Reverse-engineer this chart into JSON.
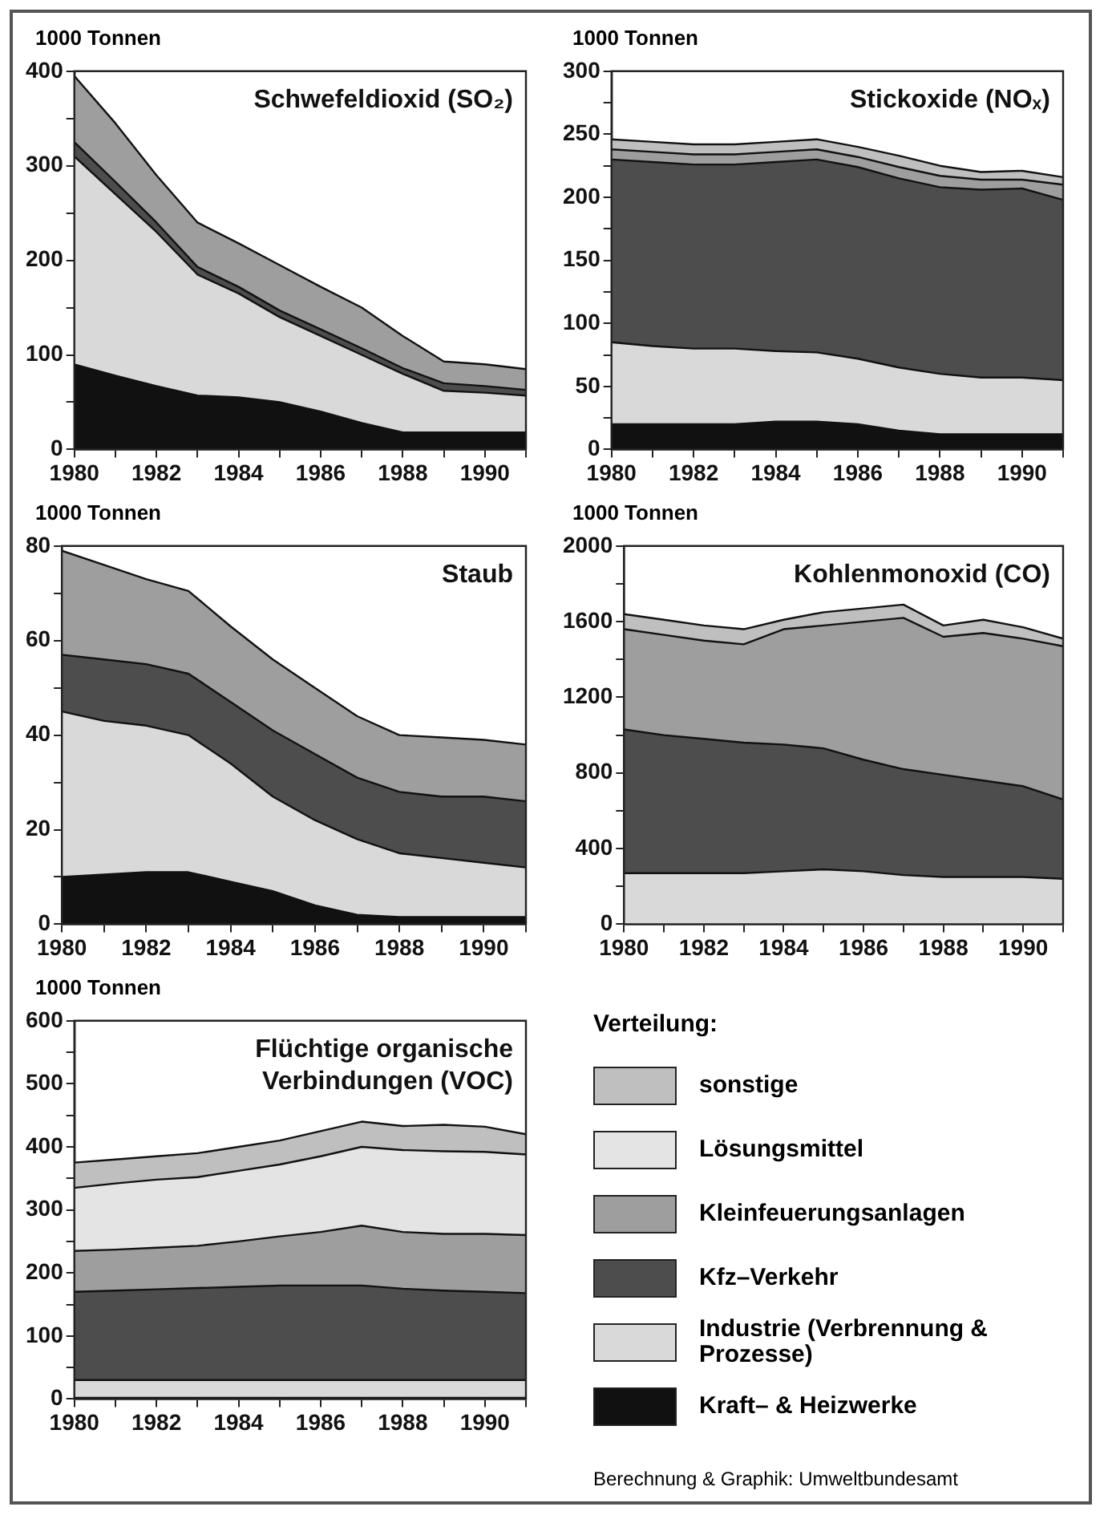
{
  "chart_data": [
    {
      "type": "area",
      "stacked": true,
      "title": "Schwefeldioxid (SO₂)",
      "ylabel": "1000 Tonnen",
      "x": [
        1980,
        1981,
        1982,
        1983,
        1984,
        1985,
        1986,
        1987,
        1988,
        1989,
        1990,
        1991
      ],
      "xlim": [
        1980,
        1991
      ],
      "xticks": [
        1980,
        {
          "value": 1981,
          "label": null
        },
        1982,
        {
          "value": 1983,
          "label": null
        },
        1984,
        {
          "value": 1985,
          "label": null
        },
        1986,
        {
          "value": 1987,
          "label": null
        },
        1988,
        {
          "value": 1989,
          "label": null
        },
        1990,
        {
          "value": 1991,
          "label": null
        }
      ],
      "ylim": [
        0,
        400
      ],
      "yticks": [
        0,
        {
          "value": 50,
          "label": null
        },
        100,
        {
          "value": 150,
          "label": null
        },
        200,
        {
          "value": 250,
          "label": null
        },
        300,
        {
          "value": 350,
          "label": null
        },
        400
      ],
      "series": [
        {
          "color": "#111111",
          "values": [
            90,
            78,
            67,
            57,
            55,
            50,
            40,
            28,
            18,
            18,
            18,
            18
          ]
        },
        {
          "color": "#d9d9d9",
          "values": [
            220,
            192,
            163,
            128,
            110,
            90,
            80,
            72,
            62,
            44,
            42,
            39
          ]
        },
        {
          "color": "#4d4d4d",
          "values": [
            15,
            13,
            10,
            8,
            7,
            7,
            7,
            7,
            6,
            8,
            7,
            6
          ]
        },
        {
          "color": "#9e9e9e",
          "values": [
            70,
            62,
            50,
            47,
            46,
            48,
            45,
            43,
            34,
            23,
            23,
            22
          ]
        }
      ]
    },
    {
      "type": "area",
      "stacked": true,
      "title": "Stickoxide (NOₓ)",
      "ylabel": "1000 Tonnen",
      "x": [
        1980,
        1981,
        1982,
        1983,
        1984,
        1985,
        1986,
        1987,
        1988,
        1989,
        1990,
        1991
      ],
      "xlim": [
        1980,
        1991
      ],
      "xticks": [
        1980,
        {
          "value": 1981,
          "label": null
        },
        1982,
        {
          "value": 1983,
          "label": null
        },
        1984,
        {
          "value": 1985,
          "label": null
        },
        1986,
        {
          "value": 1987,
          "label": null
        },
        1988,
        {
          "value": 1989,
          "label": null
        },
        1990,
        {
          "value": 1991,
          "label": null
        }
      ],
      "ylim": [
        0,
        300
      ],
      "yticks": [
        0,
        {
          "value": 25,
          "label": null
        },
        50,
        {
          "value": 75,
          "label": null
        },
        100,
        {
          "value": 125,
          "label": null
        },
        150,
        {
          "value": 175,
          "label": null
        },
        200,
        {
          "value": 225,
          "label": null
        },
        250,
        {
          "value": 275,
          "label": null
        },
        300
      ],
      "series": [
        {
          "color": "#111111",
          "values": [
            20,
            20,
            20,
            20,
            22,
            22,
            20,
            15,
            12,
            12,
            12,
            12
          ]
        },
        {
          "color": "#d9d9d9",
          "values": [
            65,
            62,
            60,
            60,
            56,
            55,
            52,
            50,
            48,
            45,
            45,
            43
          ]
        },
        {
          "color": "#4d4d4d",
          "values": [
            145,
            146,
            146,
            146,
            150,
            153,
            152,
            150,
            148,
            149,
            150,
            143
          ]
        },
        {
          "color": "#9e9e9e",
          "values": [
            8,
            8,
            8,
            8,
            8,
            8,
            8,
            9,
            9,
            8,
            7,
            12
          ]
        },
        {
          "color": "#bfbfbf",
          "values": [
            8,
            8,
            8,
            8,
            8,
            8,
            8,
            9,
            8,
            6,
            7,
            6
          ]
        }
      ]
    },
    {
      "type": "area",
      "stacked": true,
      "title": "Staub",
      "ylabel": "1000 Tonnen",
      "x": [
        1980,
        1981,
        1982,
        1983,
        1984,
        1985,
        1986,
        1987,
        1988,
        1989,
        1990,
        1991
      ],
      "xlim": [
        1980,
        1991
      ],
      "xticks": [
        1980,
        {
          "value": 1981,
          "label": null
        },
        1982,
        {
          "value": 1983,
          "label": null
        },
        1984,
        {
          "value": 1985,
          "label": null
        },
        1986,
        {
          "value": 1987,
          "label": null
        },
        1988,
        {
          "value": 1989,
          "label": null
        },
        1990,
        {
          "value": 1991,
          "label": null
        }
      ],
      "ylim": [
        0,
        80
      ],
      "yticks": [
        0,
        {
          "value": 10,
          "label": null
        },
        20,
        {
          "value": 30,
          "label": null
        },
        40,
        {
          "value": 50,
          "label": null
        },
        60,
        {
          "value": 70,
          "label": null
        },
        80
      ],
      "series": [
        {
          "color": "#111111",
          "values": [
            10,
            10.5,
            11,
            11,
            9,
            7,
            4,
            2,
            1.5,
            1.5,
            1.5,
            1.5
          ]
        },
        {
          "color": "#d9d9d9",
          "values": [
            35,
            32.5,
            31,
            29,
            25,
            20,
            18,
            16,
            13.5,
            12.5,
            11.5,
            10.5
          ]
        },
        {
          "color": "#4d4d4d",
          "values": [
            12,
            13,
            13,
            13,
            13,
            14,
            14,
            13,
            13,
            13,
            14,
            14
          ]
        },
        {
          "color": "#9e9e9e",
          "values": [
            22,
            20,
            18,
            17.5,
            16,
            15,
            14,
            13,
            12,
            12.5,
            12,
            12
          ]
        }
      ]
    },
    {
      "type": "area",
      "stacked": true,
      "title": "Kohlenmonoxid (CO)",
      "ylabel": "1000 Tonnen",
      "x": [
        1980,
        1981,
        1982,
        1983,
        1984,
        1985,
        1986,
        1987,
        1988,
        1989,
        1990,
        1991
      ],
      "xlim": [
        1980,
        1991
      ],
      "xticks": [
        1980,
        {
          "value": 1981,
          "label": null
        },
        1982,
        {
          "value": 1983,
          "label": null
        },
        1984,
        {
          "value": 1985,
          "label": null
        },
        1986,
        {
          "value": 1987,
          "label": null
        },
        1988,
        {
          "value": 1989,
          "label": null
        },
        1990,
        {
          "value": 1991,
          "label": null
        }
      ],
      "ylim": [
        0,
        2000
      ],
      "yticks": [
        0,
        {
          "value": 200,
          "label": null
        },
        400,
        {
          "value": 600,
          "label": null
        },
        800,
        {
          "value": 1000,
          "label": null
        },
        1200,
        {
          "value": 1400,
          "label": null
        },
        1600,
        {
          "value": 1800,
          "label": null
        },
        2000
      ],
      "series": [
        {
          "color": "#d9d9d9",
          "values": [
            270,
            270,
            270,
            270,
            280,
            290,
            280,
            260,
            250,
            250,
            250,
            240
          ]
        },
        {
          "color": "#4d4d4d",
          "values": [
            760,
            730,
            710,
            690,
            670,
            640,
            590,
            560,
            540,
            510,
            480,
            420
          ]
        },
        {
          "color": "#9e9e9e",
          "values": [
            530,
            530,
            520,
            520,
            610,
            650,
            730,
            800,
            730,
            780,
            780,
            810
          ]
        },
        {
          "color": "#bfbfbf",
          "values": [
            80,
            80,
            80,
            80,
            50,
            70,
            70,
            70,
            60,
            70,
            60,
            40
          ]
        }
      ]
    },
    {
      "type": "area",
      "stacked": true,
      "title": "Flüchtige organische Verbindungen (VOC)",
      "ylabel": "1000 Tonnen",
      "x": [
        1980,
        1981,
        1982,
        1983,
        1984,
        1985,
        1986,
        1987,
        1988,
        1989,
        1990,
        1991
      ],
      "xlim": [
        1980,
        1991
      ],
      "xticks": [
        1980,
        {
          "value": 1981,
          "label": null
        },
        1982,
        {
          "value": 1983,
          "label": null
        },
        1984,
        {
          "value": 1985,
          "label": null
        },
        1986,
        {
          "value": 1987,
          "label": null
        },
        1988,
        {
          "value": 1989,
          "label": null
        },
        1990,
        {
          "value": 1991,
          "label": null
        }
      ],
      "ylim": [
        0,
        600
      ],
      "yticks": [
        0,
        {
          "value": 50,
          "label": null
        },
        100,
        {
          "value": 150,
          "label": null
        },
        200,
        {
          "value": 250,
          "label": null
        },
        300,
        {
          "value": 350,
          "label": null
        },
        400,
        {
          "value": 450,
          "label": null
        },
        500,
        {
          "value": 550,
          "label": null
        },
        600
      ],
      "legend": "right",
      "legend_title": "Verteilung:",
      "annotations": [
        "Berechnung & Graphik: Umweltbundesamt"
      ],
      "series": [
        {
          "name": "Kraft– & Heizwerke",
          "color": "#111111",
          "values": [
            2,
            2,
            2,
            2,
            2,
            2,
            2,
            2,
            2,
            2,
            2,
            2
          ]
        },
        {
          "name": "Industrie (Verbrennung & Prozesse)",
          "color": "#d9d9d9",
          "values": [
            28,
            28,
            28,
            28,
            28,
            28,
            28,
            28,
            28,
            28,
            28,
            28
          ]
        },
        {
          "name": "Kfz–Verkehr",
          "color": "#4d4d4d",
          "values": [
            140,
            142,
            144,
            146,
            148,
            150,
            150,
            150,
            145,
            142,
            140,
            138
          ]
        },
        {
          "name": "Kleinfeuerungsanlagen",
          "color": "#9e9e9e",
          "values": [
            65,
            65,
            66,
            67,
            72,
            78,
            85,
            95,
            90,
            90,
            92,
            92
          ]
        },
        {
          "name": "Lösungsmittel",
          "color": "#e4e4e4",
          "values": [
            100,
            105,
            108,
            109,
            112,
            114,
            120,
            125,
            130,
            131,
            130,
            128
          ]
        },
        {
          "name": "sonstige",
          "color": "#bfbfbf",
          "values": [
            40,
            38,
            37,
            38,
            38,
            38,
            40,
            40,
            38,
            42,
            40,
            32
          ]
        }
      ]
    }
  ]
}
